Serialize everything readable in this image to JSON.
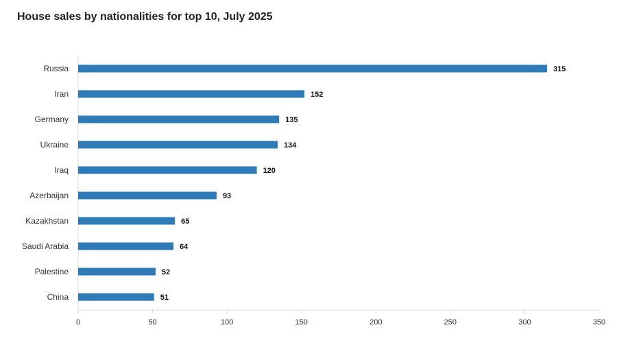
{
  "chart_data": {
    "type": "bar",
    "orientation": "horizontal",
    "title": "House sales by nationalities for top 10, July 2025",
    "xlabel": "",
    "ylabel": "",
    "categories": [
      "Russia",
      "Iran",
      "Germany",
      "Ukraine",
      "Iraq",
      "Azerbaijan",
      "Kazakhstan",
      "Saudi Arabia",
      "Palestine",
      "China"
    ],
    "values": [
      315,
      152,
      135,
      134,
      120,
      93,
      65,
      64,
      52,
      51
    ],
    "xlim": [
      0,
      350
    ],
    "xticks": [
      0,
      50,
      100,
      150,
      200,
      250,
      300,
      350
    ],
    "bar_color": "#2e7bb8",
    "data_labels": true,
    "grid": false
  }
}
